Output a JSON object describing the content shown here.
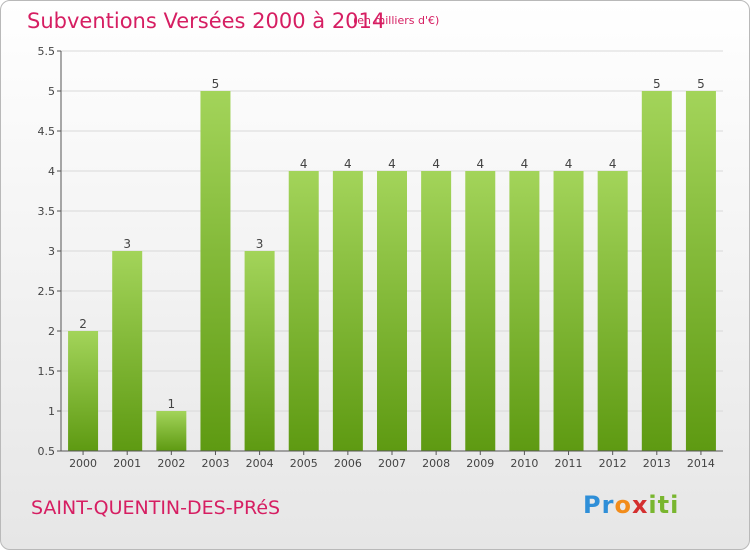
{
  "header": {
    "title": "Subventions Versées 2000 à 2014",
    "unit": "(en milliers d'€)"
  },
  "footer": {
    "commune": "SAINT-QUENTIN-DES-PRéS",
    "logo_text": "Proxiti"
  },
  "colors": {
    "title": "#d61e62",
    "bar_light": "#a3d45a",
    "bar_dark": "#5e9a12",
    "grid": "#d9d9d9"
  },
  "chart_data": {
    "type": "bar",
    "title": "Subventions Versées 2000 à 2014",
    "subtitle": "(en milliers d'€)",
    "xlabel": "",
    "ylabel": "",
    "categories": [
      "2000",
      "2001",
      "2002",
      "2003",
      "2004",
      "2005",
      "2006",
      "2007",
      "2008",
      "2009",
      "2010",
      "2011",
      "2012",
      "2013",
      "2014"
    ],
    "values": [
      2,
      3,
      1,
      5,
      3,
      4,
      4,
      4,
      4,
      4,
      4,
      4,
      4,
      5,
      5
    ],
    "ylim": [
      0.5,
      5.5
    ],
    "yticks": [
      "0.5",
      "1",
      "1.5",
      "2",
      "2.5",
      "3",
      "3.5",
      "4",
      "4.5",
      "5",
      "5.5"
    ],
    "grid": true,
    "legend": "none"
  }
}
